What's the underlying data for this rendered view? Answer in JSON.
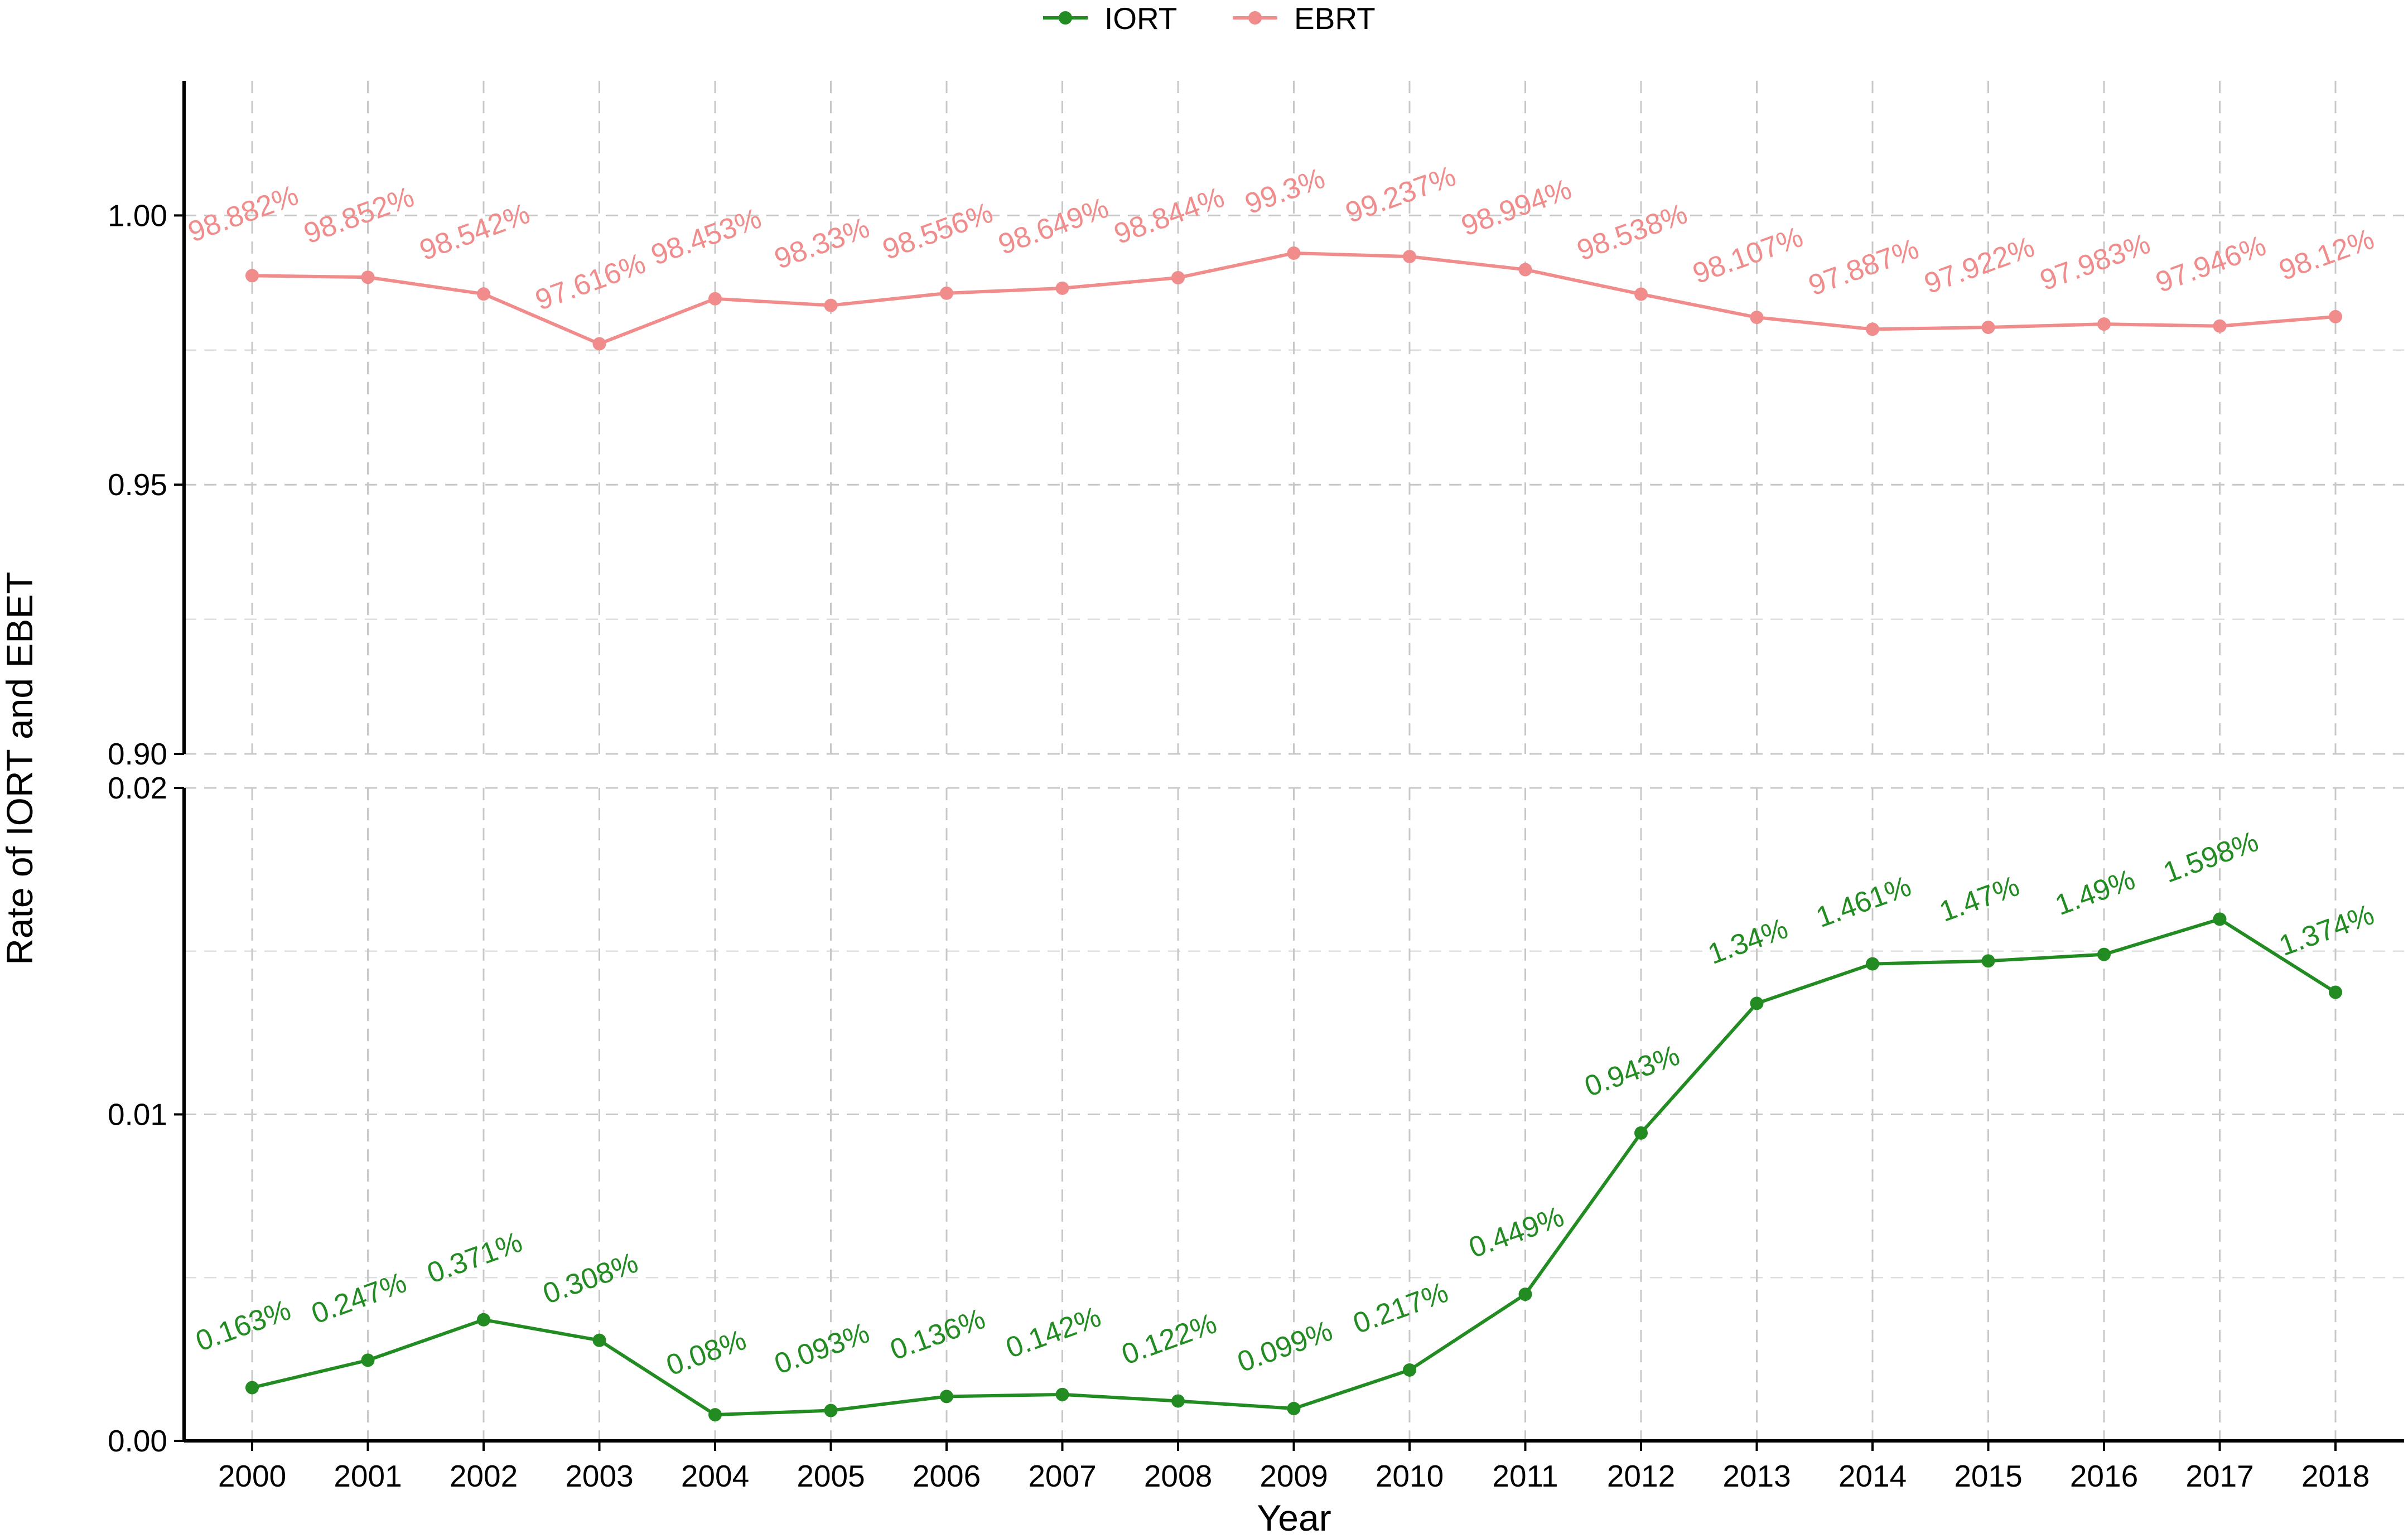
{
  "chart_data": {
    "type": "line",
    "xlabel": "Year",
    "ylabel": "Rate of IORT and EBET",
    "categories": [
      "2000",
      "2001",
      "2002",
      "2003",
      "2004",
      "2005",
      "2006",
      "2007",
      "2008",
      "2009",
      "2010",
      "2011",
      "2012",
      "2013",
      "2014",
      "2015",
      "2016",
      "2017",
      "2018"
    ],
    "legend": {
      "placement": "top-center",
      "entries": [
        "IORT",
        "EBRT"
      ]
    },
    "grid": true,
    "axis_break": true,
    "panels": [
      {
        "name": "upper",
        "series_name": "EBRT",
        "ylim": [
          0.9,
          1.025
        ],
        "yticks": [
          "0.90",
          "0.95",
          "1.00"
        ]
      },
      {
        "name": "lower",
        "series_name": "IORT",
        "ylim": [
          0.0,
          0.02
        ],
        "yticks": [
          "0.00",
          "0.01",
          "0.02"
        ]
      }
    ],
    "series": [
      {
        "name": "IORT",
        "color": "#228B22",
        "values": [
          0.00163,
          0.00247,
          0.00371,
          0.00308,
          0.0008,
          0.00093,
          0.00136,
          0.00142,
          0.00122,
          0.00099,
          0.00217,
          0.00449,
          0.00943,
          0.0134,
          0.01461,
          0.0147,
          0.0149,
          0.01598,
          0.01374
        ],
        "labels": [
          "0.163%",
          "0.247%",
          "0.371%",
          "0.308%",
          "0.08%",
          "0.093%",
          "0.136%",
          "0.142%",
          "0.122%",
          "0.099%",
          "0.217%",
          "0.449%",
          "0.943%",
          "1.34%",
          "1.461%",
          "1.47%",
          "1.49%",
          "1.598%",
          "1.374%"
        ]
      },
      {
        "name": "EBRT",
        "color": "#F08C8C",
        "values": [
          0.98882,
          0.98852,
          0.98542,
          0.97616,
          0.98453,
          0.9833,
          0.98556,
          0.98649,
          0.98844,
          0.993,
          0.99237,
          0.98994,
          0.98538,
          0.98107,
          0.97887,
          0.97922,
          0.97983,
          0.97946,
          0.9812
        ],
        "labels": [
          "98.882%",
          "98.852%",
          "98.542%",
          "97.616%",
          "98.453%",
          "98.33%",
          "98.556%",
          "98.649%",
          "98.844%",
          "99.3%",
          "99.237%",
          "98.994%",
          "98.538%",
          "98.107%",
          "97.887%",
          "97.922%",
          "97.983%",
          "97.946%",
          "98.12%"
        ]
      }
    ]
  }
}
